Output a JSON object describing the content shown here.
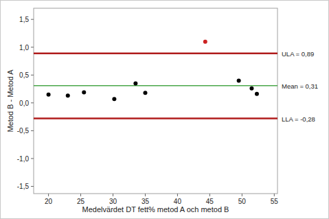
{
  "chart_data": {
    "type": "scatter",
    "x_label": "Medelvärdet DT fett% metod A och metod B",
    "y_label": "Metod B - Metod A",
    "x": [
      20,
      23,
      25.5,
      30.2,
      33.5,
      35,
      44.3,
      49.5,
      51.5,
      52.3
    ],
    "values": [
      0.15,
      0.13,
      0.19,
      0.07,
      0.35,
      0.18,
      1.1,
      0.4,
      0.26,
      0.16
    ],
    "colors": [
      "#000000",
      "#000000",
      "#000000",
      "#000000",
      "#000000",
      "#000000",
      "#cc2222",
      "#000000",
      "#000000",
      "#000000"
    ],
    "marker": "circle",
    "xlim": [
      17.7,
      55.5
    ],
    "ylim": [
      -1.63,
      1.7
    ],
    "xticks": [
      20,
      25,
      30,
      35,
      40,
      45,
      50,
      55
    ],
    "yticks": [
      {
        "value": -1.5,
        "label": "-1,5"
      },
      {
        "value": -1.0,
        "label": "-1,0"
      },
      {
        "value": -0.5,
        "label": "-0,5"
      },
      {
        "value": 0,
        "label": "0,0"
      },
      {
        "value": 0.5,
        "label": "0,5"
      },
      {
        "value": 1.0,
        "label": "1,0"
      },
      {
        "value": 1.5,
        "label": "1,5"
      }
    ],
    "grid": false,
    "reference_lines": [
      {
        "value": 0.89,
        "label": "ULA = 0,89",
        "color": "#b01c1c"
      },
      {
        "value": 0.31,
        "label": "Mean = 0,31",
        "color": "#4aa84a"
      },
      {
        "value": -0.28,
        "label": "LLA = -0,28",
        "color": "#b01c1c"
      }
    ]
  }
}
